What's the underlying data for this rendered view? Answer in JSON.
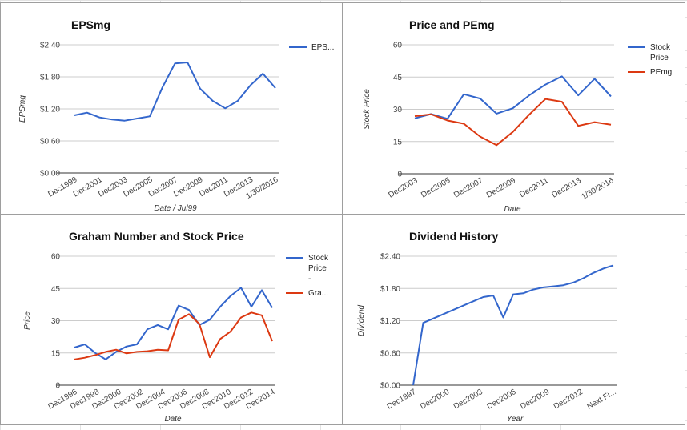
{
  "chart_data": [
    {
      "type": "line",
      "title": "EPSmg",
      "xlabel": "Date / Jul99",
      "ylabel": "EPSmg",
      "ylim": [
        0,
        2.4
      ],
      "y_ticks": [
        "$0.00",
        "$0.60",
        "$1.20",
        "$1.80",
        "$2.40"
      ],
      "x_ticks": [
        "Dec1999",
        "Dec2001",
        "Dec2003",
        "Dec2005",
        "Dec2007",
        "Dec2009",
        "Dec2011",
        "Dec2013",
        "1/30/2016"
      ],
      "legend_position": "right",
      "series": [
        {
          "name": "EPS...",
          "color": "#3366cc",
          "values": [
            1.08,
            1.13,
            1.04,
            1.0,
            0.98,
            1.02,
            1.06,
            1.6,
            2.05,
            2.07,
            1.58,
            1.35,
            1.21,
            1.35,
            1.64,
            1.86,
            1.59
          ]
        }
      ]
    },
    {
      "type": "line",
      "title": "Price and PEmg",
      "xlabel": "Date",
      "ylabel": "Stock Price",
      "ylim": [
        0,
        60
      ],
      "y_ticks": [
        "0",
        "15",
        "30",
        "45",
        "60"
      ],
      "x_ticks": [
        "Dec2003",
        "Dec2005",
        "Dec2007",
        "Dec2009",
        "Dec2011",
        "Dec2013",
        "1/30/2016"
      ],
      "legend_position": "right",
      "series": [
        {
          "name": "Stock Price",
          "color": "#3366cc",
          "values": [
            25.8,
            27.8,
            25.6,
            37.0,
            35.0,
            28.0,
            30.5,
            36.5,
            41.5,
            45.3,
            36.5,
            44.2,
            36.0
          ]
        },
        {
          "name": "PEmg",
          "color": "#dc3912",
          "values": [
            26.8,
            27.7,
            24.8,
            23.3,
            17.3,
            13.3,
            19.5,
            27.5,
            34.8,
            33.5,
            22.3,
            24.0,
            22.8
          ]
        }
      ]
    },
    {
      "type": "line",
      "title": "Graham Number and Stock Price",
      "xlabel": "Date",
      "ylabel": "Price",
      "ylim": [
        0,
        60
      ],
      "y_ticks": [
        "0",
        "15",
        "30",
        "45",
        "60"
      ],
      "x_ticks": [
        "Dec1996",
        "Dec1998",
        "Dec2000",
        "Dec2002",
        "Dec2004",
        "Dec2006",
        "Dec2008",
        "Dec2010",
        "Dec2012",
        "Dec2014"
      ],
      "legend_position": "right",
      "series": [
        {
          "name": "Stock Price -",
          "color": "#3366cc",
          "values": [
            17.5,
            19.0,
            15.0,
            12.0,
            15.5,
            18.0,
            19.0,
            26.0,
            28.0,
            26.0,
            37.0,
            35.0,
            28.0,
            30.5,
            36.5,
            41.5,
            45.3,
            36.5,
            44.2,
            36.0
          ]
        },
        {
          "name": "Gra...",
          "color": "#dc3912",
          "values": [
            12.0,
            12.8,
            14.0,
            15.5,
            16.5,
            14.8,
            15.5,
            15.8,
            16.5,
            16.2,
            30.5,
            33.0,
            28.5,
            13.0,
            21.5,
            25.0,
            31.5,
            33.8,
            32.5,
            20.5
          ]
        }
      ]
    },
    {
      "type": "line",
      "title": "Dividend History",
      "xlabel": "Year",
      "ylabel": "Dividend",
      "ylim": [
        0,
        2.4
      ],
      "y_ticks": [
        "$0.00",
        "$0.60",
        "$1.20",
        "$1.80",
        "$2.40"
      ],
      "x_ticks": [
        "Dec1997",
        "Dec2000",
        "Dec2003",
        "Dec2006",
        "Dec2009",
        "Dec2012",
        "Next Fi..."
      ],
      "legend_position": "none",
      "series": [
        {
          "name": "",
          "color": "#3366cc",
          "values": [
            0.0,
            1.16,
            1.24,
            1.32,
            1.4,
            1.48,
            1.56,
            1.64,
            1.67,
            1.26,
            1.69,
            1.71,
            1.78,
            1.82,
            1.84,
            1.86,
            1.91,
            1.99,
            2.09,
            2.17,
            2.23
          ]
        }
      ]
    }
  ]
}
